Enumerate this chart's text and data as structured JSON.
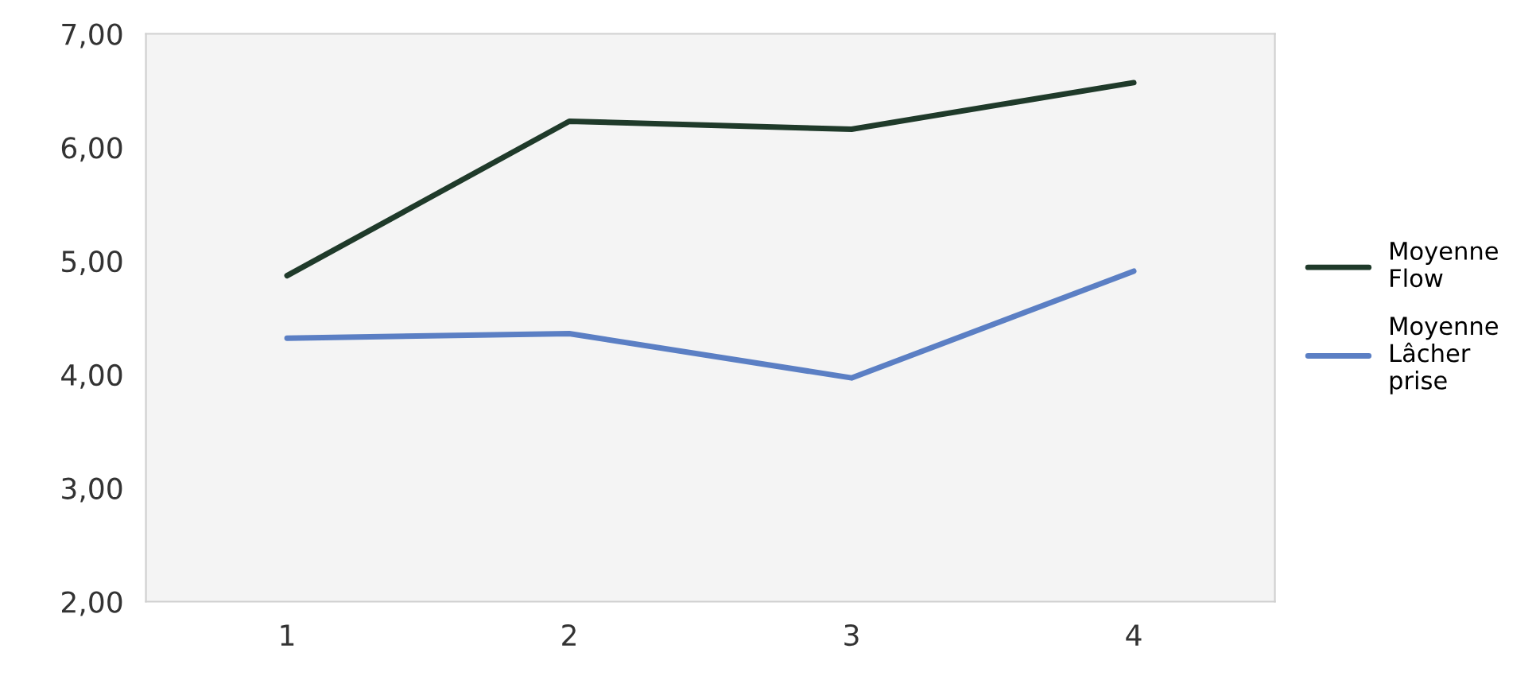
{
  "chart_data": {
    "type": "line",
    "categories": [
      "1",
      "2",
      "3",
      "4"
    ],
    "series": [
      {
        "name": "Moyenne\nFlow",
        "color": "#1f3a2a",
        "values": [
          4.87,
          6.23,
          6.16,
          6.57
        ]
      },
      {
        "name": "Moyenne\nLâcher\nprise",
        "color": "#5b7fc4",
        "values": [
          4.32,
          4.36,
          3.97,
          4.91
        ]
      }
    ],
    "ylim": [
      2,
      7
    ],
    "yticks": [
      {
        "value": 2,
        "label": "2,00"
      },
      {
        "value": 3,
        "label": "3,00"
      },
      {
        "value": 4,
        "label": "4,00"
      },
      {
        "value": 5,
        "label": "5,00"
      },
      {
        "value": 6,
        "label": "6,00"
      },
      {
        "value": 7,
        "label": "7,00"
      }
    ],
    "grid": false,
    "legend": "right"
  }
}
